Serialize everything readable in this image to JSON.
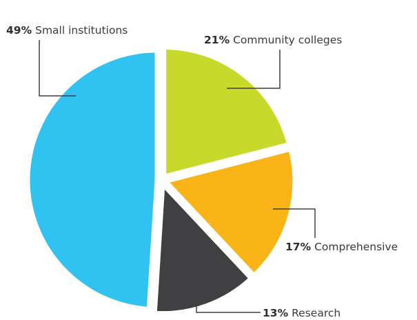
{
  "chart_data": {
    "type": "pie",
    "categories": [
      "Small institutions",
      "Community colleges",
      "Comprehensive",
      "Research"
    ],
    "values": [
      49,
      21,
      17,
      13
    ],
    "percent_labels": [
      "49%",
      "21%",
      "17%",
      "13%"
    ],
    "colors": [
      "#30c2f0",
      "#c8d92c",
      "#fbb417",
      "#404042"
    ],
    "title": "",
    "legend": "none"
  }
}
